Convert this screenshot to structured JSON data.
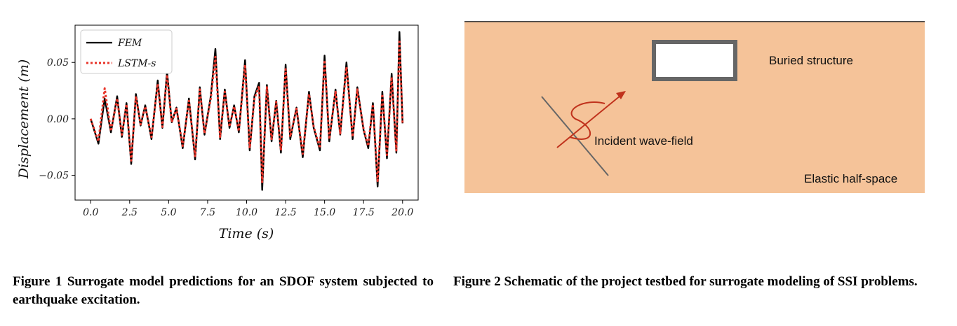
{
  "figure1": {
    "caption": "Figure 1 Surrogate model predictions for an SDOF system subjected to earthquake excitation.",
    "chart_data": {
      "type": "line",
      "xlabel": "Time (s)",
      "ylabel": "Displacement (m)",
      "xlim": [
        -1.0,
        21.0
      ],
      "ylim": [
        -0.072,
        0.083
      ],
      "xticks": [
        "0.0",
        "2.5",
        "5.0",
        "7.5",
        "10.0",
        "12.5",
        "15.0",
        "17.5",
        "20.0"
      ],
      "yticks": [
        "0.05",
        "0.00",
        "−0.05"
      ],
      "legend_position": "top-left",
      "grid": false,
      "series": [
        {
          "name": "FEM",
          "color": "#000000",
          "style": "solid",
          "x": [
            0.0,
            0.5,
            0.9,
            1.3,
            1.7,
            2.0,
            2.3,
            2.6,
            2.9,
            3.2,
            3.5,
            3.9,
            4.3,
            4.6,
            4.9,
            5.2,
            5.5,
            5.9,
            6.3,
            6.7,
            7.0,
            7.3,
            7.7,
            8.0,
            8.3,
            8.6,
            8.9,
            9.2,
            9.5,
            9.9,
            10.2,
            10.5,
            10.8,
            11.0,
            11.3,
            11.6,
            11.9,
            12.2,
            12.5,
            12.8,
            13.2,
            13.6,
            14.0,
            14.3,
            14.7,
            15.0,
            15.3,
            15.7,
            16.0,
            16.4,
            16.8,
            17.1,
            17.5,
            17.8,
            18.1,
            18.4,
            18.7,
            19.0,
            19.3,
            19.6,
            19.8,
            20.0
          ],
          "y": [
            0.0,
            -0.022,
            0.018,
            -0.012,
            0.02,
            -0.016,
            0.014,
            -0.04,
            0.022,
            -0.006,
            0.012,
            -0.018,
            0.034,
            -0.008,
            0.042,
            -0.003,
            0.01,
            -0.026,
            0.018,
            -0.036,
            0.028,
            -0.014,
            0.02,
            0.062,
            -0.018,
            0.026,
            -0.008,
            0.012,
            -0.012,
            0.052,
            -0.028,
            0.02,
            0.032,
            -0.063,
            0.03,
            -0.02,
            0.016,
            -0.03,
            0.048,
            -0.018,
            0.01,
            -0.034,
            0.024,
            -0.008,
            -0.028,
            0.056,
            -0.02,
            0.026,
            -0.014,
            0.05,
            -0.018,
            0.028,
            -0.01,
            -0.026,
            0.014,
            -0.06,
            0.024,
            -0.035,
            0.04,
            -0.03,
            0.077,
            -0.004
          ]
        },
        {
          "name": "LSTM-s",
          "color": "#e8352a",
          "style": "dotted",
          "x": [
            0.0,
            0.5,
            0.9,
            1.3,
            1.7,
            2.0,
            2.3,
            2.6,
            2.9,
            3.2,
            3.5,
            3.9,
            4.3,
            4.6,
            4.9,
            5.2,
            5.5,
            5.9,
            6.3,
            6.7,
            7.0,
            7.3,
            7.7,
            8.0,
            8.3,
            8.6,
            8.9,
            9.2,
            9.5,
            9.9,
            10.2,
            10.5,
            10.8,
            11.0,
            11.3,
            11.6,
            11.9,
            12.2,
            12.5,
            12.8,
            13.2,
            13.6,
            14.0,
            14.3,
            14.7,
            15.0,
            15.3,
            15.7,
            16.0,
            16.4,
            16.8,
            17.1,
            17.5,
            17.8,
            18.1,
            18.4,
            18.7,
            19.0,
            19.3,
            19.6,
            19.8,
            20.0
          ],
          "y": [
            0.0,
            -0.02,
            0.027,
            -0.011,
            0.018,
            -0.014,
            0.013,
            -0.037,
            0.02,
            -0.005,
            0.011,
            -0.016,
            0.031,
            -0.007,
            0.039,
            -0.003,
            0.009,
            -0.024,
            0.016,
            -0.033,
            0.026,
            -0.013,
            0.018,
            0.055,
            -0.016,
            0.024,
            -0.007,
            0.011,
            -0.011,
            0.048,
            -0.026,
            0.018,
            0.029,
            -0.056,
            0.028,
            -0.018,
            0.015,
            -0.028,
            0.044,
            -0.016,
            0.009,
            -0.031,
            0.022,
            -0.007,
            -0.026,
            0.052,
            -0.018,
            0.024,
            -0.013,
            0.046,
            -0.016,
            0.026,
            -0.009,
            -0.024,
            0.013,
            -0.055,
            0.022,
            -0.032,
            0.037,
            -0.028,
            0.07,
            -0.004
          ]
        }
      ]
    }
  },
  "figure2": {
    "caption": "Figure 2 Schematic of the project testbed for surrogate modeling of SSI problems.",
    "labels": {
      "buried_structure": "Buried structure",
      "incident_wave": "Incident wave-field",
      "half_space": "Elastic half-space"
    },
    "colors": {
      "soil": "#f5c399",
      "structure_border": "#666666",
      "wave": "#c0321c"
    }
  }
}
